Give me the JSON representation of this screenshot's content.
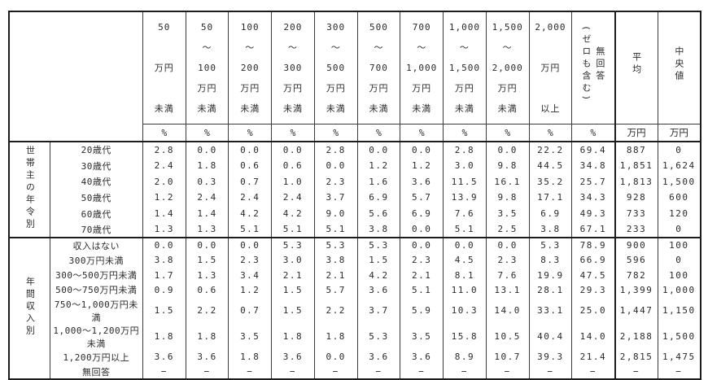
{
  "chart_data": {
    "type": "table",
    "title": "",
    "columns": [
      {
        "text": "50\n\n万円\n\n未満",
        "vertical": false
      },
      {
        "text": "50\n〜\n100\n万円\n未満",
        "vertical": false
      },
      {
        "text": "100\n〜\n200\n万円\n未満",
        "vertical": false
      },
      {
        "text": "200\n〜\n300\n万円\n未満",
        "vertical": false
      },
      {
        "text": "300\n〜\n500\n万円\n未満",
        "vertical": false
      },
      {
        "text": "500\n〜\n700\n万円\n未満",
        "vertical": false
      },
      {
        "text": "700\n〜\n1,000\n万円\n未満",
        "vertical": false
      },
      {
        "text": "1,000\n〜\n1,500\n万円\n未満",
        "vertical": false
      },
      {
        "text": "1,500\n〜\n2,000\n万円\n未満",
        "vertical": false
      },
      {
        "text": "2,000\n\n万円\n\n以上",
        "vertical": false
      },
      {
        "text": "無回答\n(ゼロも含む)",
        "vertical": true
      },
      {
        "text": "平均",
        "vertical": true
      },
      {
        "text": "中央値",
        "vertical": true
      }
    ],
    "units": [
      "%",
      "%",
      "%",
      "%",
      "%",
      "%",
      "%",
      "%",
      "%",
      "%",
      "%",
      "万円",
      "万円"
    ],
    "groups": [
      {
        "label": "世帯主の年令別",
        "rows": [
          {
            "label": "20歳代",
            "values": [
              "2.8",
              "0.0",
              "0.0",
              "0.0",
              "2.8",
              "0.0",
              "0.0",
              "2.8",
              "0.0",
              "22.2",
              "69.4",
              "887",
              "0"
            ]
          },
          {
            "label": "30歳代",
            "values": [
              "2.4",
              "1.8",
              "0.6",
              "0.6",
              "0.0",
              "1.2",
              "1.2",
              "3.0",
              "9.8",
              "44.5",
              "34.8",
              "1,851",
              "1,624"
            ]
          },
          {
            "label": "40歳代",
            "values": [
              "2.0",
              "0.3",
              "0.7",
              "1.0",
              "2.3",
              "1.6",
              "3.6",
              "11.5",
              "16.1",
              "35.2",
              "25.7",
              "1,813",
              "1,500"
            ]
          },
          {
            "label": "50歳代",
            "values": [
              "1.2",
              "2.4",
              "2.4",
              "2.4",
              "3.7",
              "6.9",
              "5.7",
              "13.9",
              "9.8",
              "17.1",
              "34.3",
              "928",
              "600"
            ]
          },
          {
            "label": "60歳代",
            "values": [
              "1.4",
              "1.4",
              "4.2",
              "4.2",
              "9.0",
              "5.6",
              "6.9",
              "7.6",
              "3.5",
              "6.9",
              "49.3",
              "733",
              "120"
            ]
          },
          {
            "label": "70歳代",
            "values": [
              "1.3",
              "1.3",
              "5.1",
              "5.1",
              "5.1",
              "3.8",
              "0.0",
              "5.1",
              "2.5",
              "3.8",
              "67.1",
              "233",
              "0"
            ]
          }
        ]
      },
      {
        "label": "年間収入別",
        "rows": [
          {
            "label": "収入はない",
            "values": [
              "0.0",
              "0.0",
              "0.0",
              "5.3",
              "5.3",
              "5.3",
              "0.0",
              "0.0",
              "0.0",
              "5.3",
              "78.9",
              "900",
              "100"
            ]
          },
          {
            "label": "300万円未満",
            "values": [
              "3.8",
              "1.5",
              "2.3",
              "3.0",
              "3.8",
              "1.5",
              "2.3",
              "4.5",
              "2.3",
              "8.3",
              "66.9",
              "596",
              "0"
            ]
          },
          {
            "label": "300〜500万円未満",
            "values": [
              "1.7",
              "1.3",
              "3.4",
              "2.1",
              "2.1",
              "4.2",
              "2.1",
              "8.1",
              "7.6",
              "19.9",
              "47.5",
              "782",
              "100"
            ]
          },
          {
            "label": "500〜750万円未満",
            "values": [
              "0.9",
              "0.6",
              "1.2",
              "1.5",
              "5.7",
              "3.6",
              "5.1",
              "11.0",
              "13.1",
              "28.1",
              "29.3",
              "1,399",
              "1,000"
            ]
          },
          {
            "label": "750〜1,000万円未満",
            "values": [
              "1.5",
              "2.2",
              "0.7",
              "1.5",
              "2.2",
              "3.7",
              "5.9",
              "10.3",
              "14.0",
              "33.1",
              "25.0",
              "1,447",
              "1,150"
            ]
          },
          {
            "label": "1,000〜1,200万円未満",
            "values": [
              "1.8",
              "1.8",
              "3.5",
              "1.8",
              "1.8",
              "5.3",
              "3.5",
              "15.8",
              "10.5",
              "40.4",
              "14.0",
              "2,188",
              "1,500"
            ]
          },
          {
            "label": "1,200万円以上",
            "values": [
              "3.6",
              "3.6",
              "1.8",
              "3.6",
              "0.0",
              "3.6",
              "3.6",
              "8.9",
              "10.7",
              "39.3",
              "21.4",
              "2,815",
              "1,475"
            ]
          },
          {
            "label": "無回答",
            "values": [
              "−",
              "−",
              "−",
              "−",
              "−",
              "−",
              "−",
              "−",
              "−",
              "−",
              "−",
              "−",
              "−"
            ]
          }
        ]
      }
    ]
  }
}
